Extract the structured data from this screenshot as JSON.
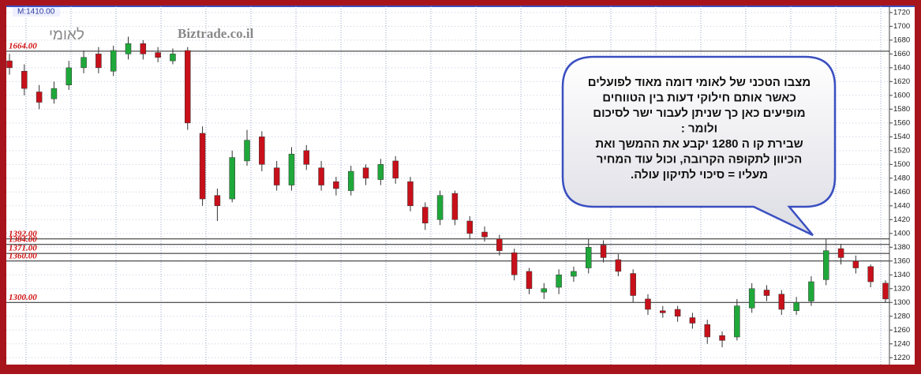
{
  "chart_data": {
    "type": "candlestick",
    "title": "לאומי",
    "watermark": "Biztrade.co.il",
    "header_label": "M:1410.00",
    "ylim": [
      1210,
      1729
    ],
    "yticks": [
      1220,
      1240,
      1260,
      1280,
      1300,
      1320,
      1340,
      1360,
      1380,
      1400,
      1420,
      1440,
      1460,
      1480,
      1500,
      1520,
      1540,
      1560,
      1580,
      1600,
      1620,
      1640,
      1660,
      1680,
      1700,
      1720
    ],
    "grid": true,
    "up_color": "#1fa83a",
    "down_color": "#c8101a",
    "levels": [
      {
        "value": 1664,
        "label": "1664.00"
      },
      {
        "value": 1392,
        "label": "1392.00"
      },
      {
        "value": 1384,
        "label": "1384.00"
      },
      {
        "value": 1371,
        "label": "1371.00"
      },
      {
        "value": 1360,
        "label": "1360.00"
      },
      {
        "value": 1300,
        "label": "1300.00"
      }
    ],
    "open": [
      1650,
      1635,
      1605,
      1595,
      1615,
      1640,
      1660,
      1635,
      1660,
      1675,
      1662,
      1650,
      1665,
      1545,
      1455,
      1450,
      1505,
      1540,
      1495,
      1470,
      1520,
      1495,
      1475,
      1462,
      1495,
      1478,
      1505,
      1475,
      1438,
      1420,
      1458,
      1418,
      1402,
      1392,
      1372,
      1345,
      1315,
      1322,
      1338,
      1350,
      1383,
      1362,
      1342,
      1305,
      1288,
      1290,
      1278,
      1268,
      1252,
      1250,
      1292,
      1318,
      1312,
      1288,
      1302,
      1333,
      1378,
      1360,
      1352,
      1328
    ],
    "high": [
      1660,
      1645,
      1615,
      1620,
      1650,
      1665,
      1670,
      1672,
      1685,
      1680,
      1670,
      1668,
      1670,
      1555,
      1465,
      1520,
      1550,
      1548,
      1505,
      1525,
      1528,
      1505,
      1482,
      1498,
      1500,
      1508,
      1512,
      1482,
      1445,
      1462,
      1462,
      1425,
      1410,
      1398,
      1378,
      1350,
      1328,
      1348,
      1352,
      1392,
      1390,
      1370,
      1348,
      1312,
      1295,
      1295,
      1285,
      1275,
      1258,
      1305,
      1328,
      1325,
      1318,
      1308,
      1338,
      1392,
      1385,
      1368,
      1355,
      1332
    ],
    "low": [
      1630,
      1600,
      1580,
      1588,
      1608,
      1632,
      1632,
      1628,
      1652,
      1652,
      1648,
      1645,
      1550,
      1440,
      1418,
      1445,
      1498,
      1490,
      1462,
      1462,
      1492,
      1462,
      1455,
      1455,
      1470,
      1470,
      1472,
      1432,
      1405,
      1412,
      1412,
      1392,
      1388,
      1368,
      1332,
      1312,
      1305,
      1312,
      1330,
      1342,
      1358,
      1338,
      1300,
      1282,
      1278,
      1272,
      1262,
      1240,
      1235,
      1245,
      1285,
      1302,
      1282,
      1282,
      1295,
      1325,
      1355,
      1342,
      1322,
      1300
    ],
    "close": [
      1640,
      1610,
      1590,
      1610,
      1640,
      1655,
      1640,
      1665,
      1675,
      1660,
      1655,
      1660,
      1560,
      1450,
      1440,
      1510,
      1535,
      1500,
      1470,
      1515,
      1500,
      1470,
      1465,
      1490,
      1480,
      1500,
      1480,
      1440,
      1415,
      1455,
      1420,
      1400,
      1395,
      1375,
      1340,
      1320,
      1320,
      1340,
      1345,
      1380,
      1365,
      1345,
      1310,
      1290,
      1285,
      1280,
      1270,
      1250,
      1245,
      1295,
      1320,
      1310,
      1290,
      1300,
      1330,
      1375,
      1365,
      1350,
      1330,
      1305
    ],
    "annotation": [
      "מצבו הטכני של לאומי דומה מאוד לפועלים",
      "כאשר אותם חילוקי דעות בין הטווחים",
      "מופיעים כאן כך שניתן לעבור ישר לסיכום",
      "ולומר :",
      "שבירת קו ה 1280 יקבע את ההמשך ואת",
      "הכיוון לתקופה הקרובה, וכול עוד המחיר",
      "מעליו = סיכוי לתיקון עולה."
    ]
  }
}
